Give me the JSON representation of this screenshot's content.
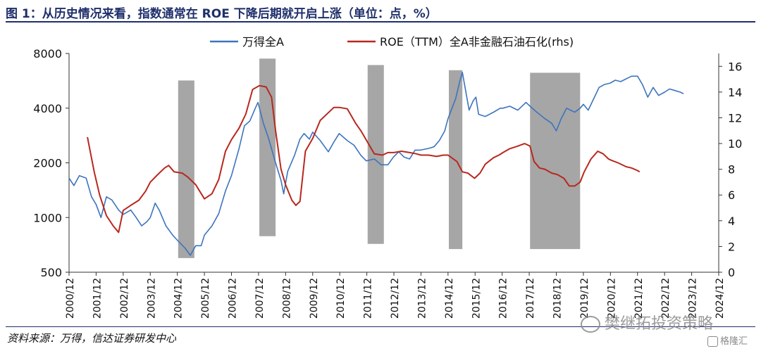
{
  "header": {
    "title": "图 1：从历史情况来看，指数通常在 ROE 下降后期就开启上涨（单位：点，%）"
  },
  "footer": {
    "source": "资料来源：万得，信达证券研发中心"
  },
  "watermark": {
    "text": "樊继拓投资策略"
  },
  "logo": {
    "text": "格隆汇"
  },
  "chart_data": {
    "type": "line",
    "x_tick_labels": [
      "2000/12",
      "2001/12",
      "2002/12",
      "2003/12",
      "2004/12",
      "2005/12",
      "2006/12",
      "2007/12",
      "2008/12",
      "2009/12",
      "2010/12",
      "2011/12",
      "2012/12",
      "2013/12",
      "2014/12",
      "2015/12",
      "2016/12",
      "2017/12",
      "2018/12",
      "2019/12",
      "2020/12",
      "2021/12",
      "2022/12",
      "2023/12",
      "2024/12"
    ],
    "left_axis": {
      "scale": "log",
      "ticks": [
        500,
        1000,
        2000,
        4000,
        8000
      ],
      "ylim": [
        500,
        8000
      ]
    },
    "right_axis": {
      "ticks": [
        0,
        2,
        4,
        6,
        8,
        10,
        12,
        14,
        16
      ],
      "ylim": [
        0,
        17
      ]
    },
    "legend_placement": "top",
    "series": [
      {
        "name": "万得全A",
        "axis": "left",
        "color": "#3c74be",
        "points": [
          [
            2000.92,
            1650
          ],
          [
            2001.1,
            1500
          ],
          [
            2001.3,
            1700
          ],
          [
            2001.55,
            1650
          ],
          [
            2001.75,
            1300
          ],
          [
            2001.92,
            1180
          ],
          [
            2002.1,
            1000
          ],
          [
            2002.3,
            1300
          ],
          [
            2002.5,
            1250
          ],
          [
            2002.75,
            1100
          ],
          [
            2002.92,
            1040
          ],
          [
            2003.2,
            1100
          ],
          [
            2003.4,
            1000
          ],
          [
            2003.6,
            900
          ],
          [
            2003.8,
            950
          ],
          [
            2003.92,
            1000
          ],
          [
            2004.1,
            1200
          ],
          [
            2004.25,
            1100
          ],
          [
            2004.5,
            900
          ],
          [
            2004.75,
            800
          ],
          [
            2004.92,
            750
          ],
          [
            2005.2,
            680
          ],
          [
            2005.4,
            620
          ],
          [
            2005.6,
            700
          ],
          [
            2005.8,
            700
          ],
          [
            2005.92,
            800
          ],
          [
            2006.2,
            900
          ],
          [
            2006.45,
            1050
          ],
          [
            2006.7,
            1400
          ],
          [
            2006.92,
            1700
          ],
          [
            2007.2,
            2400
          ],
          [
            2007.4,
            3200
          ],
          [
            2007.6,
            3400
          ],
          [
            2007.8,
            4000
          ],
          [
            2007.9,
            4300
          ],
          [
            2008.1,
            3300
          ],
          [
            2008.3,
            2700
          ],
          [
            2008.55,
            2000
          ],
          [
            2008.75,
            1600
          ],
          [
            2008.85,
            1350
          ],
          [
            2009.0,
            1800
          ],
          [
            2009.25,
            2200
          ],
          [
            2009.45,
            2700
          ],
          [
            2009.6,
            2900
          ],
          [
            2009.8,
            2700
          ],
          [
            2009.92,
            2950
          ],
          [
            2010.2,
            2650
          ],
          [
            2010.5,
            2300
          ],
          [
            2010.7,
            2600
          ],
          [
            2010.9,
            2900
          ],
          [
            2011.2,
            2650
          ],
          [
            2011.45,
            2500
          ],
          [
            2011.7,
            2200
          ],
          [
            2011.9,
            2050
          ],
          [
            2012.2,
            2100
          ],
          [
            2012.45,
            1950
          ],
          [
            2012.7,
            1950
          ],
          [
            2012.9,
            2150
          ],
          [
            2013.1,
            2300
          ],
          [
            2013.3,
            2150
          ],
          [
            2013.5,
            2100
          ],
          [
            2013.7,
            2350
          ],
          [
            2013.9,
            2350
          ],
          [
            2014.2,
            2400
          ],
          [
            2014.4,
            2450
          ],
          [
            2014.6,
            2650
          ],
          [
            2014.8,
            3000
          ],
          [
            2014.92,
            3500
          ],
          [
            2015.2,
            4500
          ],
          [
            2015.35,
            5600
          ],
          [
            2015.45,
            6300
          ],
          [
            2015.55,
            5200
          ],
          [
            2015.7,
            3900
          ],
          [
            2015.85,
            4400
          ],
          [
            2015.95,
            4600
          ],
          [
            2016.05,
            3700
          ],
          [
            2016.3,
            3600
          ],
          [
            2016.6,
            3800
          ],
          [
            2016.85,
            4000
          ],
          [
            2016.95,
            4000
          ],
          [
            2017.2,
            4100
          ],
          [
            2017.5,
            3900
          ],
          [
            2017.8,
            4300
          ],
          [
            2017.95,
            4100
          ],
          [
            2018.2,
            3800
          ],
          [
            2018.5,
            3500
          ],
          [
            2018.75,
            3300
          ],
          [
            2018.92,
            3000
          ],
          [
            2019.1,
            3500
          ],
          [
            2019.3,
            4000
          ],
          [
            2019.6,
            3800
          ],
          [
            2019.8,
            4000
          ],
          [
            2019.92,
            4200
          ],
          [
            2020.1,
            3900
          ],
          [
            2020.3,
            4500
          ],
          [
            2020.5,
            5200
          ],
          [
            2020.7,
            5400
          ],
          [
            2020.92,
            5500
          ],
          [
            2021.1,
            5700
          ],
          [
            2021.3,
            5600
          ],
          [
            2021.5,
            5800
          ],
          [
            2021.7,
            6000
          ],
          [
            2021.92,
            6000
          ],
          [
            2022.1,
            5400
          ],
          [
            2022.3,
            4600
          ],
          [
            2022.5,
            5200
          ],
          [
            2022.7,
            4700
          ],
          [
            2022.92,
            4900
          ],
          [
            2023.1,
            5100
          ],
          [
            2023.3,
            5000
          ],
          [
            2023.5,
            4900
          ],
          [
            2023.62,
            4800
          ]
        ]
      },
      {
        "name": "ROE（TTM）全A非金融石油石化(rhs)",
        "axis": "right",
        "color": "#b8281e",
        "points": [
          [
            2001.6,
            10.5
          ],
          [
            2001.85,
            7.8
          ],
          [
            2002.05,
            6.0
          ],
          [
            2002.3,
            4.4
          ],
          [
            2002.55,
            3.6
          ],
          [
            2002.75,
            3.1
          ],
          [
            2002.92,
            4.8
          ],
          [
            2003.2,
            5.2
          ],
          [
            2003.5,
            5.6
          ],
          [
            2003.75,
            6.3
          ],
          [
            2003.92,
            7.0
          ],
          [
            2004.2,
            7.6
          ],
          [
            2004.45,
            8.1
          ],
          [
            2004.6,
            8.3
          ],
          [
            2004.8,
            7.8
          ],
          [
            2005.1,
            7.7
          ],
          [
            2005.3,
            7.4
          ],
          [
            2005.6,
            6.8
          ],
          [
            2005.92,
            5.7
          ],
          [
            2006.2,
            6.1
          ],
          [
            2006.45,
            7.2
          ],
          [
            2006.7,
            9.4
          ],
          [
            2006.92,
            10.3
          ],
          [
            2007.2,
            11.2
          ],
          [
            2007.45,
            12.3
          ],
          [
            2007.7,
            14.2
          ],
          [
            2007.95,
            14.5
          ],
          [
            2008.2,
            14.4
          ],
          [
            2008.4,
            13.6
          ],
          [
            2008.55,
            11.0
          ],
          [
            2008.75,
            8.0
          ],
          [
            2008.92,
            6.8
          ],
          [
            2009.15,
            5.6
          ],
          [
            2009.3,
            5.2
          ],
          [
            2009.45,
            5.5
          ],
          [
            2009.65,
            9.4
          ],
          [
            2009.92,
            10.4
          ],
          [
            2010.2,
            11.8
          ],
          [
            2010.5,
            12.4
          ],
          [
            2010.7,
            12.8
          ],
          [
            2010.92,
            12.8
          ],
          [
            2011.2,
            12.7
          ],
          [
            2011.5,
            11.6
          ],
          [
            2011.7,
            11.0
          ],
          [
            2011.92,
            10.2
          ],
          [
            2012.2,
            9.2
          ],
          [
            2012.5,
            9.1
          ],
          [
            2012.7,
            9.3
          ],
          [
            2012.92,
            9.3
          ],
          [
            2013.2,
            9.4
          ],
          [
            2013.5,
            9.3
          ],
          [
            2013.75,
            9.2
          ],
          [
            2013.92,
            9.1
          ],
          [
            2014.2,
            9.1
          ],
          [
            2014.5,
            9.0
          ],
          [
            2014.75,
            9.1
          ],
          [
            2014.92,
            9.1
          ],
          [
            2015.25,
            8.6
          ],
          [
            2015.45,
            7.8
          ],
          [
            2015.65,
            7.7
          ],
          [
            2015.9,
            7.3
          ],
          [
            2016.1,
            7.7
          ],
          [
            2016.3,
            8.4
          ],
          [
            2016.6,
            8.9
          ],
          [
            2016.8,
            9.1
          ],
          [
            2016.95,
            9.3
          ],
          [
            2017.2,
            9.6
          ],
          [
            2017.5,
            9.8
          ],
          [
            2017.75,
            10.0
          ],
          [
            2017.95,
            9.8
          ],
          [
            2018.1,
            8.6
          ],
          [
            2018.3,
            8.1
          ],
          [
            2018.5,
            8.0
          ],
          [
            2018.75,
            7.7
          ],
          [
            2018.95,
            7.6
          ],
          [
            2019.2,
            7.3
          ],
          [
            2019.4,
            6.7
          ],
          [
            2019.6,
            6.7
          ],
          [
            2019.8,
            7.0
          ],
          [
            2019.95,
            7.8
          ],
          [
            2020.2,
            8.8
          ],
          [
            2020.45,
            9.4
          ],
          [
            2020.65,
            9.2
          ],
          [
            2020.85,
            8.8
          ],
          [
            2020.95,
            8.7
          ],
          [
            2021.2,
            8.5
          ],
          [
            2021.5,
            8.2
          ],
          [
            2021.7,
            8.1
          ],
          [
            2021.92,
            7.9
          ],
          [
            2022.0,
            7.8
          ]
        ]
      }
    ],
    "shaded_periods": [
      {
        "start": 2004.95,
        "end": 2005.55,
        "top": 14.9,
        "bottom": 1.1
      },
      {
        "start": 2007.95,
        "end": 2008.55,
        "top": 16.6,
        "bottom": 2.8
      },
      {
        "start": 2011.95,
        "end": 2012.55,
        "top": 16.1,
        "bottom": 2.2
      },
      {
        "start": 2014.95,
        "end": 2015.45,
        "top": 15.7,
        "bottom": 1.8
      },
      {
        "start": 2017.95,
        "end": 2019.8,
        "top": 15.5,
        "bottom": 1.8
      }
    ]
  }
}
